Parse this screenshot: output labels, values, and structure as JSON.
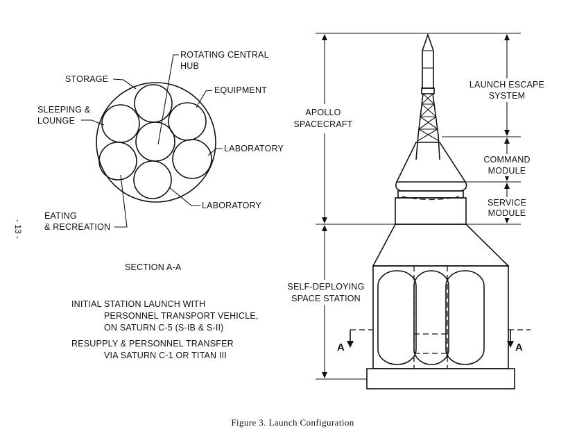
{
  "page_number": "- 13 -",
  "section_a": {
    "labels": {
      "rotating_hub_line1": "ROTATING CENTRAL",
      "rotating_hub_line2": "HUB",
      "storage": "STORAGE",
      "equipment": "EQUIPMENT",
      "sleeping_line1": "SLEEPING &",
      "sleeping_line2": "LOUNGE",
      "laboratory_upper": "LABORATORY",
      "laboratory_lower": "LABORATORY",
      "eating_line1": "EATING",
      "eating_line2": "& RECREATION"
    },
    "title": "SECTION A-A"
  },
  "notes": {
    "launch_line1": "INITIAL STATION LAUNCH WITH",
    "launch_line2": "PERSONNEL TRANSPORT VEHICLE,",
    "launch_line3": "ON SATURN C-5 (S-IB & S-II)",
    "resupply_line1": "RESUPPLY & PERSONNEL TRANSFER",
    "resupply_line2": "VIA SATURN C-1 OR TITAN III"
  },
  "vehicle": {
    "labels": {
      "apollo_line1": "APOLLO",
      "apollo_line2": "SPACECRAFT",
      "les_line1": "LAUNCH ESCAPE",
      "les_line2": "SYSTEM",
      "cm_line1": "COMMAND",
      "cm_line2": "MODULE",
      "sm_line1": "SERVICE",
      "sm_line2": "MODULE",
      "station_line1": "SELF-DEPLOYING",
      "station_line2": "SPACE STATION",
      "section_left": "A",
      "section_right": "A"
    }
  },
  "caption": "Figure 3.   Launch Configuration"
}
